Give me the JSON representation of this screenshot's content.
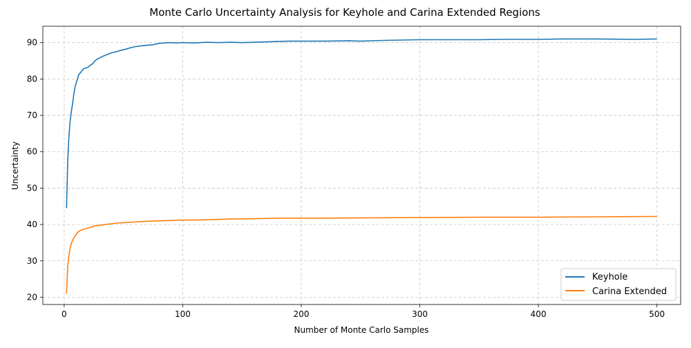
{
  "chart_data": {
    "type": "line",
    "title": "Monte Carlo Uncertainty Analysis for Keyhole and Carina Extended Regions",
    "xlabel": "Number of Monte Carlo Samples",
    "ylabel": "Uncertainty",
    "xlim": [
      -18,
      520
    ],
    "ylim": [
      18,
      94.5
    ],
    "xticks": [
      0,
      100,
      200,
      300,
      400,
      500
    ],
    "yticks": [
      20,
      30,
      40,
      50,
      60,
      70,
      80,
      90
    ],
    "grid": true,
    "legend_position": "lower-right",
    "series": [
      {
        "name": "Keyhole",
        "color": "#1f77b4",
        "x": [
          2,
          3,
          4,
          5,
          6,
          7,
          8,
          9,
          10,
          11,
          12,
          13,
          14,
          15,
          16,
          17,
          18,
          20,
          22,
          24,
          26,
          28,
          30,
          33,
          36,
          40,
          44,
          48,
          52,
          56,
          60,
          65,
          70,
          75,
          80,
          85,
          90,
          95,
          100,
          110,
          120,
          130,
          140,
          150,
          160,
          170,
          180,
          190,
          200,
          220,
          240,
          250,
          270,
          300,
          330,
          350,
          370,
          400,
          420,
          450,
          480,
          500
        ],
        "y": [
          44.5,
          57.5,
          64.0,
          68.5,
          71.0,
          73.0,
          75.5,
          77.5,
          78.8,
          79.8,
          81.0,
          81.5,
          81.8,
          82.3,
          82.7,
          82.9,
          83.0,
          83.2,
          83.8,
          84.2,
          85.0,
          85.5,
          85.8,
          86.3,
          86.7,
          87.2,
          87.5,
          87.9,
          88.2,
          88.6,
          88.9,
          89.1,
          89.3,
          89.4,
          89.8,
          89.9,
          90.0,
          89.9,
          90.0,
          89.9,
          90.1,
          90.0,
          90.1,
          90.0,
          90.1,
          90.2,
          90.3,
          90.4,
          90.4,
          90.4,
          90.5,
          90.4,
          90.6,
          90.8,
          90.8,
          90.8,
          90.9,
          90.9,
          91.0,
          91.0,
          90.9,
          91.0
        ]
      },
      {
        "name": "Carina Extended",
        "color": "#ff7f0e",
        "x": [
          2,
          3,
          4,
          5,
          6,
          7,
          8,
          9,
          10,
          11,
          12,
          13,
          14,
          16,
          18,
          20,
          23,
          26,
          30,
          35,
          40,
          45,
          50,
          60,
          70,
          80,
          90,
          100,
          120,
          140,
          160,
          180,
          200,
          250,
          300,
          350,
          400,
          450,
          500
        ],
        "y": [
          21.0,
          28.5,
          31.5,
          33.5,
          34.8,
          35.6,
          36.2,
          36.8,
          37.2,
          37.7,
          38.0,
          38.2,
          38.4,
          38.6,
          38.8,
          39.0,
          39.3,
          39.6,
          39.8,
          40.0,
          40.2,
          40.4,
          40.5,
          40.7,
          40.9,
          41.0,
          41.1,
          41.2,
          41.3,
          41.5,
          41.6,
          41.7,
          41.7,
          41.8,
          41.9,
          42.0,
          42.0,
          42.1,
          42.2
        ]
      }
    ]
  }
}
